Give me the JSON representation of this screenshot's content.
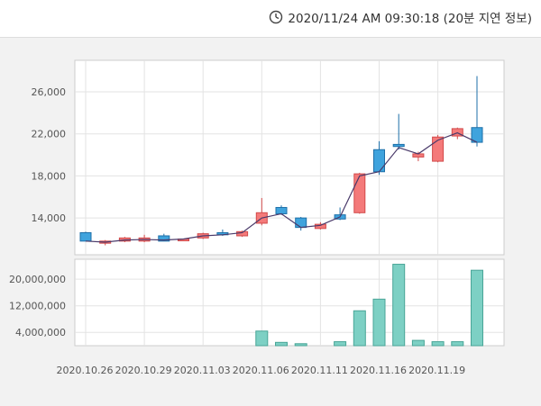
{
  "header": {
    "timestamp": "2020/11/24 AM 09:30:18 (20분 지연 정보)",
    "icon": "clock-icon"
  },
  "colors": {
    "up": "#f47a7a",
    "up_border": "#d24a4a",
    "down": "#3fa3dd",
    "down_border": "#1d6fa8",
    "volume": "#7dd0c4",
    "volume_border": "#49a597",
    "line": "#4a3a6a"
  },
  "chart_data": [
    {
      "type": "candlestick",
      "ylim": [
        10500,
        29000
      ],
      "yticks": [
        14000,
        18000,
        22000,
        26000
      ],
      "ytick_labels": [
        "14,000",
        "18,000",
        "22,000",
        "26,000"
      ],
      "grid": true,
      "series": [
        {
          "date": "2020.10.26",
          "open": 12600,
          "high": 12700,
          "low": 11800,
          "close": 11800
        },
        {
          "date": "2020.10.27",
          "open": 11600,
          "high": 11900,
          "low": 11400,
          "close": 11800
        },
        {
          "date": "2020.10.28",
          "open": 11800,
          "high": 12200,
          "low": 11700,
          "close": 12100
        },
        {
          "date": "2020.10.29",
          "open": 11800,
          "high": 12400,
          "low": 11700,
          "close": 12100
        },
        {
          "date": "2020.10.30",
          "open": 12300,
          "high": 12500,
          "low": 11800,
          "close": 11800
        },
        {
          "date": "2020.11.02",
          "open": 11900,
          "high": 12000,
          "low": 11800,
          "close": 12000
        },
        {
          "date": "2020.11.03",
          "open": 12100,
          "high": 12600,
          "low": 12000,
          "close": 12500
        },
        {
          "date": "2020.11.04",
          "open": 12600,
          "high": 12900,
          "low": 12300,
          "close": 12400
        },
        {
          "date": "2020.11.05",
          "open": 12300,
          "high": 12800,
          "low": 12200,
          "close": 12700
        },
        {
          "date": "2020.11.06",
          "open": 13500,
          "high": 15900,
          "low": 13300,
          "close": 14500
        },
        {
          "date": "2020.11.09",
          "open": 15000,
          "high": 15200,
          "low": 14300,
          "close": 14400
        },
        {
          "date": "2020.11.10",
          "open": 14000,
          "high": 14100,
          "low": 12800,
          "close": 13100
        },
        {
          "date": "2020.11.11",
          "open": 13000,
          "high": 13600,
          "low": 12900,
          "close": 13400
        },
        {
          "date": "2020.11.12",
          "open": 14300,
          "high": 15000,
          "low": 13800,
          "close": 13900
        },
        {
          "date": "2020.11.13",
          "open": 14500,
          "high": 18300,
          "low": 14400,
          "close": 18200
        },
        {
          "date": "2020.11.16",
          "open": 20500,
          "high": 21300,
          "low": 18100,
          "close": 18400
        },
        {
          "date": "2020.11.17",
          "open": 21000,
          "high": 23900,
          "low": 20500,
          "close": 20800
        },
        {
          "date": "2020.11.18",
          "open": 19800,
          "high": 20300,
          "low": 19400,
          "close": 20100
        },
        {
          "date": "2020.11.19",
          "open": 19400,
          "high": 21900,
          "low": 19300,
          "close": 21700
        },
        {
          "date": "2020.11.20",
          "open": 21800,
          "high": 22600,
          "low": 21500,
          "close": 22500
        },
        {
          "date": "2020.11.23",
          "open": 22600,
          "high": 27500,
          "low": 20800,
          "close": 21200
        }
      ],
      "line": [
        11800,
        11700,
        11900,
        11950,
        11900,
        12000,
        12300,
        12400,
        12600,
        14000,
        14400,
        13100,
        13300,
        14100,
        18000,
        18400,
        20700,
        20100,
        21400,
        22100,
        21200
      ]
    },
    {
      "type": "bar",
      "ylim": [
        0,
        26000000
      ],
      "yticks": [
        4000000,
        12000000,
        20000000
      ],
      "ytick_labels": [
        "4,000,000",
        "12,000,000",
        "20,000,000"
      ],
      "values": [
        0,
        0,
        0,
        0,
        0,
        0,
        0,
        0,
        0,
        4400000,
        1000000,
        600000,
        0,
        1200000,
        10500000,
        14000000,
        24500000,
        1600000,
        1200000,
        1200000,
        22700000
      ]
    }
  ],
  "x_axis": {
    "labels": [
      "2020.10.26",
      "2020.10.29",
      "2020.11.03",
      "2020.11.06",
      "2020.11.11",
      "2020.11.16",
      "2020.11.19"
    ]
  }
}
